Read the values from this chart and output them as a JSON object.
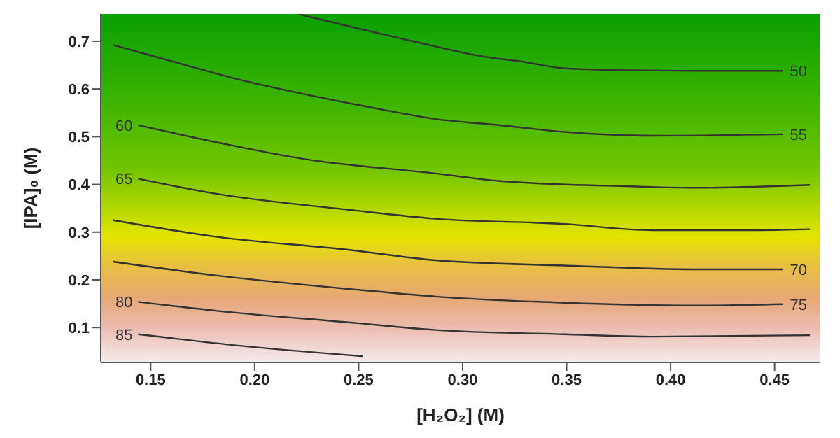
{
  "chart_data": {
    "type": "line",
    "xlabel": "[H₂O₂] (M)",
    "ylabel": "[IPA]₀ (M)",
    "xlim": [
      0.126,
      0.472
    ],
    "ylim": [
      0.027,
      0.757
    ],
    "xticks": [
      0.15,
      {
        "value": 0.2,
        "label": "0.20"
      },
      0.25,
      {
        "value": 0.3,
        "label": "0.30"
      },
      0.35,
      {
        "value": 0.4,
        "label": "0.40"
      },
      0.45
    ],
    "yticks": [
      0.1,
      0.2,
      0.3,
      0.4,
      0.5,
      0.6,
      0.7
    ],
    "grid": false,
    "legend": false,
    "marker": "none",
    "line_style": "solid",
    "series": [
      {
        "name": "50",
        "color": "#333333",
        "x": [
          0.221,
          0.287,
          0.307,
          0.329,
          0.349,
          0.381,
          0.412,
          0.454
        ],
        "values": [
          0.757,
          0.689,
          0.67,
          0.657,
          0.643,
          0.639,
          0.638,
          0.638
        ]
      },
      {
        "name": "55",
        "color": "#333333",
        "x": [
          0.132,
          0.161,
          0.193,
          0.224,
          0.255,
          0.287,
          0.318,
          0.349,
          0.391,
          0.454
        ],
        "values": [
          0.692,
          0.657,
          0.619,
          0.589,
          0.562,
          0.537,
          0.524,
          0.51,
          0.502,
          0.505
        ]
      },
      {
        "name": "60",
        "color": "#333333",
        "x": [
          0.144,
          0.182,
          0.224,
          0.287,
          0.318,
          0.381,
          0.412,
          0.467
        ],
        "values": [
          0.524,
          0.488,
          0.453,
          0.423,
          0.407,
          0.396,
          0.393,
          0.399
        ]
      },
      {
        "name": "65",
        "color": "#333333",
        "x": [
          0.144,
          0.182,
          0.245,
          0.287,
          0.349,
          0.391,
          0.443,
          0.467
        ],
        "values": [
          0.412,
          0.38,
          0.347,
          0.328,
          0.317,
          0.304,
          0.304,
          0.306
        ]
      },
      {
        "name": "70",
        "color": "#333333",
        "x": [
          0.132,
          0.182,
          0.245,
          0.287,
          0.349,
          0.412,
          0.454
        ],
        "values": [
          0.325,
          0.29,
          0.263,
          0.241,
          0.23,
          0.222,
          0.222
        ]
      },
      {
        "name": "75",
        "color": "#333333",
        "x": [
          0.132,
          0.182,
          0.245,
          0.287,
          0.349,
          0.412,
          0.454
        ],
        "values": [
          0.238,
          0.209,
          0.181,
          0.165,
          0.152,
          0.146,
          0.149
        ]
      },
      {
        "name": "80",
        "color": "#333333",
        "x": [
          0.144,
          0.182,
          0.245,
          0.287,
          0.349,
          0.391,
          0.467
        ],
        "values": [
          0.154,
          0.135,
          0.111,
          0.095,
          0.086,
          0.081,
          0.084
        ]
      },
      {
        "name": "85",
        "color": "#333333",
        "x": [
          0.144,
          0.193,
          0.252
        ],
        "values": [
          0.086,
          0.062,
          0.04
        ]
      }
    ]
  }
}
